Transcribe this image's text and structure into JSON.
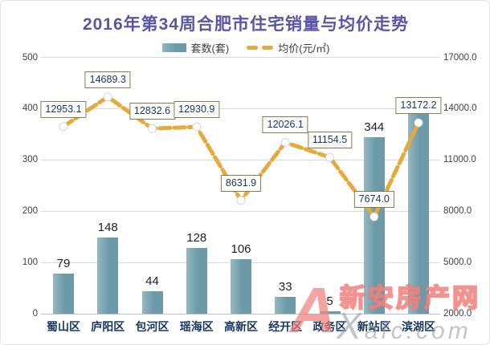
{
  "title": "2016年第34周合肥市住宅销量与均价走势",
  "legend": {
    "units": "套数(套)",
    "price": "均价(元/㎡)"
  },
  "colors": {
    "title": "#5B55A5",
    "bar": "#6C9AA9",
    "bar_light": "#95B8C2",
    "line": "#E6A93C",
    "axis_text": "#404040",
    "category_text": "#17375E",
    "grid": "#D9D9D9",
    "baseline": "#BFBFBF",
    "box_border": "#80804E",
    "watermark_pink": "#F07D78",
    "watermark_gray": "#8C97A0"
  },
  "chart_data": {
    "type": "combo",
    "title": "2016年第34周合肥市住宅销量与均价走势",
    "categories": [
      "蜀山区",
      "庐阳区",
      "包河区",
      "瑶海区",
      "高新区",
      "经开区",
      "政务区",
      "新站区",
      "滨湖区"
    ],
    "series": [
      {
        "name": "套数(套)",
        "type": "bar",
        "axis": "left",
        "values": [
          79,
          148,
          44,
          128,
          106,
          33,
          5,
          344,
          392
        ]
      },
      {
        "name": "均价(元/㎡)",
        "type": "line",
        "axis": "right",
        "values": [
          12953.1,
          14689.3,
          12832.6,
          12930.9,
          8631.9,
          12026.1,
          11154.5,
          7674.0,
          13172.2
        ]
      }
    ],
    "left_axis": {
      "min": 0,
      "max": 500,
      "tick_labels": [
        "0",
        "100",
        "200",
        "300",
        "400",
        "500"
      ]
    },
    "right_axis": {
      "min": 2000,
      "max": 17000,
      "tick_labels": [
        "2000.0",
        "5000.0",
        "8000.0",
        "11000.0",
        "14000.0",
        "17000.0"
      ]
    },
    "grid": true,
    "legend_position": "top"
  },
  "watermark": {
    "logo": "A",
    "name": "新安房产网",
    "site": "Xafc.com"
  }
}
